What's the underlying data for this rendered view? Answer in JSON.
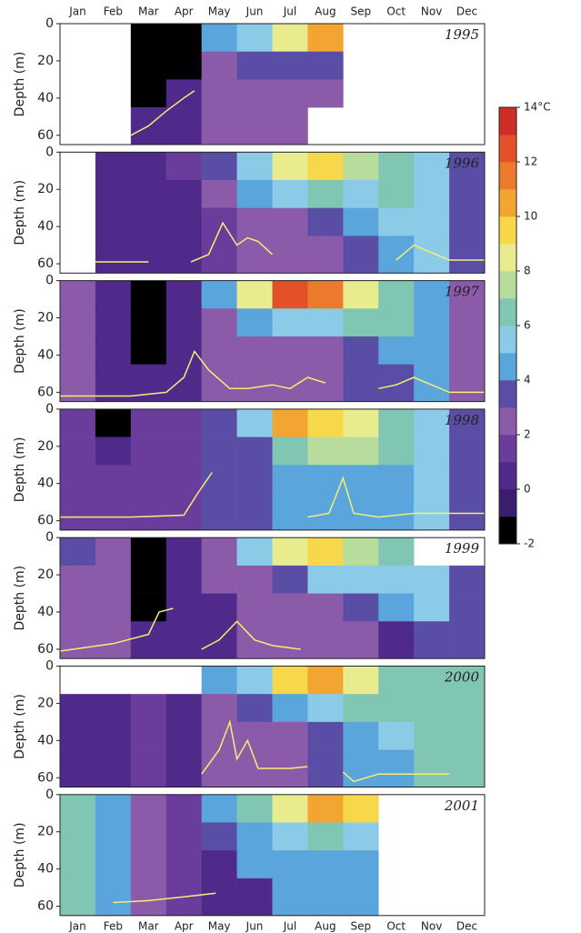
{
  "chart_data": {
    "type": "heatmap",
    "categories": [
      "Jan",
      "Feb",
      "Mar",
      "Apr",
      "May",
      "Jun",
      "Jul",
      "Aug",
      "Sep",
      "Oct",
      "Nov",
      "Dec"
    ],
    "y_label": "Depth (m)",
    "ylim": [
      0,
      65
    ],
    "yticks": [
      0,
      20,
      40,
      60
    ],
    "depth_bins": [
      0,
      15,
      30,
      45,
      65
    ],
    "line_color": "#f3ef72",
    "colorbar": {
      "levels": [
        -2,
        -1,
        0,
        1,
        2,
        3,
        4,
        5,
        6,
        7,
        8,
        9,
        10,
        11,
        12,
        13,
        14
      ],
      "colors": [
        "#000000",
        "#3b1d6e",
        "#4f2a8a",
        "#6a3c9c",
        "#8b5aa8",
        "#5a4da6",
        "#5aa6dc",
        "#8bcbe8",
        "#80c6b2",
        "#b7dc9c",
        "#e9ec8e",
        "#f7d84a",
        "#f3a532",
        "#ec7a2c",
        "#e2512a",
        "#cf2e28"
      ],
      "ticks": [
        -2,
        0,
        2,
        4,
        6,
        8,
        10,
        12,
        {
          "value": 14,
          "label": "14°C"
        }
      ]
    },
    "panels": [
      {
        "title": "1995",
        "grid": [
          [
            null,
            null,
            null,
            null
          ],
          [
            null,
            null,
            null,
            null
          ],
          [
            -1.5,
            -1.5,
            -1.5,
            0.5
          ],
          [
            -1.5,
            -1.5,
            0.5,
            0.5
          ],
          [
            4.5,
            2.5,
            2.5,
            2.5
          ],
          [
            5.5,
            3.5,
            2.5,
            2.5
          ],
          [
            8.5,
            3.5,
            2.5,
            2.5
          ],
          [
            10.5,
            3.5,
            2.5,
            null
          ],
          [
            null,
            null,
            null,
            null
          ],
          [
            null,
            null,
            null,
            null
          ],
          [
            null,
            null,
            null,
            null
          ],
          [
            null,
            null,
            null,
            null
          ]
        ],
        "line": {
          "x": [
            2.0,
            2.5,
            3.0,
            3.5,
            3.8
          ],
          "values": [
            60,
            55,
            47,
            40,
            36
          ]
        }
      },
      {
        "title": "1996",
        "grid": [
          [
            null,
            null,
            null,
            null
          ],
          [
            0.5,
            0.5,
            0.5,
            0.5
          ],
          [
            0.5,
            0.5,
            0.5,
            0.5
          ],
          [
            1.5,
            0.5,
            0.5,
            0.5
          ],
          [
            3.5,
            2.5,
            1.5,
            1.5
          ],
          [
            5.5,
            4.5,
            2.5,
            2.5
          ],
          [
            8.5,
            5.5,
            2.5,
            2.5
          ],
          [
            9.5,
            6.5,
            3.5,
            2.5
          ],
          [
            7.5,
            5.5,
            4.5,
            3.5
          ],
          [
            6.5,
            6.5,
            5.5,
            4.5
          ],
          [
            5.5,
            5.5,
            5.5,
            5.5
          ],
          [
            3.5,
            3.5,
            3.5,
            3.5
          ]
        ],
        "line": {
          "x": [
            1.0,
            2.5,
            2.8,
            3.7,
            4.2,
            4.6,
            5.0,
            5.3,
            5.6,
            6.0,
            8.0,
            9.5,
            10.0,
            11.0,
            12.0
          ],
          "values": [
            59,
            59,
            null,
            59,
            55,
            38,
            50,
            46,
            48,
            55,
            null,
            58,
            50,
            58,
            58
          ]
        }
      },
      {
        "title": "1997",
        "grid": [
          [
            2.5,
            2.5,
            2.5,
            2.5
          ],
          [
            0.5,
            0.5,
            0.5,
            0.5
          ],
          [
            -1.5,
            -1.5,
            -1.5,
            0.5
          ],
          [
            0.5,
            0.5,
            0.5,
            0.5
          ],
          [
            4.5,
            2.5,
            2.5,
            2.5
          ],
          [
            8.5,
            4.5,
            2.5,
            2.5
          ],
          [
            12.5,
            5.5,
            2.5,
            2.5
          ],
          [
            11.5,
            5.5,
            2.5,
            2.5
          ],
          [
            8.5,
            6.5,
            3.5,
            3.5
          ],
          [
            6.5,
            6.5,
            4.5,
            3.5
          ],
          [
            4.5,
            4.5,
            4.5,
            4.5
          ],
          [
            2.5,
            2.5,
            2.5,
            2.5
          ]
        ],
        "line": {
          "x": [
            0,
            2.0,
            3.0,
            3.5,
            3.8,
            4.2,
            4.8,
            5.3,
            6.0,
            6.5,
            7.0,
            7.5,
            8.0,
            9.0,
            9.5,
            10.0,
            11.0,
            12.0
          ],
          "values": [
            62,
            62,
            60,
            52,
            38,
            48,
            58,
            58,
            56,
            58,
            52,
            55,
            null,
            58,
            56,
            52,
            60,
            60
          ]
        }
      },
      {
        "title": "1998",
        "grid": [
          [
            1.5,
            1.5,
            1.5,
            1.5
          ],
          [
            -1.5,
            0.5,
            1.5,
            1.5
          ],
          [
            1.5,
            1.5,
            1.5,
            1.5
          ],
          [
            1.5,
            1.5,
            1.5,
            1.5
          ],
          [
            3.5,
            3.5,
            3.5,
            3.5
          ],
          [
            5.5,
            3.5,
            3.5,
            3.5
          ],
          [
            10.5,
            6.5,
            4.5,
            4.5
          ],
          [
            9.5,
            7.5,
            4.5,
            4.5
          ],
          [
            8.5,
            7.5,
            4.5,
            4.5
          ],
          [
            6.5,
            6.5,
            4.5,
            4.5
          ],
          [
            5.5,
            5.5,
            5.5,
            5.5
          ],
          [
            3.5,
            3.5,
            3.5,
            3.5
          ]
        ],
        "line": {
          "x": [
            0,
            2.0,
            3.5,
            3.9,
            4.3,
            6.2,
            7.0,
            7.6,
            8.0,
            8.3,
            9.0,
            10.0,
            12.0
          ],
          "values": [
            58,
            58,
            57,
            45,
            34,
            null,
            58,
            56,
            37,
            56,
            58,
            56,
            56
          ]
        }
      },
      {
        "title": "1999",
        "grid": [
          [
            3.5,
            2.5,
            2.5,
            2.5
          ],
          [
            2.5,
            2.5,
            2.5,
            2.5
          ],
          [
            -1.5,
            -1.5,
            -1.5,
            0.5
          ],
          [
            0.5,
            0.5,
            0.5,
            0.5
          ],
          [
            2.5,
            2.5,
            0.5,
            0.5
          ],
          [
            5.5,
            2.5,
            2.5,
            2.5
          ],
          [
            8.5,
            3.5,
            2.5,
            2.5
          ],
          [
            9.5,
            5.5,
            2.5,
            2.5
          ],
          [
            7.5,
            5.5,
            3.5,
            2.5
          ],
          [
            6.5,
            5.5,
            4.5,
            0.5
          ],
          [
            null,
            5.5,
            5.5,
            3.5
          ],
          [
            null,
            3.5,
            3.5,
            3.5
          ]
        ],
        "line": {
          "x": [
            0,
            1.5,
            2.5,
            2.8,
            3.2,
            3.6,
            4.0,
            4.5,
            5.0,
            5.5,
            6.0,
            6.8
          ],
          "values": [
            61,
            57,
            52,
            40,
            38,
            null,
            60,
            55,
            45,
            55,
            58,
            60
          ]
        }
      },
      {
        "title": "2000",
        "grid": [
          [
            null,
            0.5,
            0.5,
            0.5
          ],
          [
            null,
            0.5,
            0.5,
            0.5
          ],
          [
            null,
            1.5,
            1.5,
            1.5
          ],
          [
            null,
            0.5,
            0.5,
            0.5
          ],
          [
            4.5,
            2.5,
            2.5,
            2.5
          ],
          [
            5.5,
            3.5,
            2.5,
            2.5
          ],
          [
            9.5,
            4.5,
            2.5,
            2.5
          ],
          [
            10.5,
            5.5,
            3.5,
            3.5
          ],
          [
            8.5,
            6.5,
            4.5,
            4.5
          ],
          [
            6.5,
            6.5,
            5.5,
            4.5
          ],
          [
            6.5,
            6.5,
            6.5,
            6.5
          ],
          [
            6.5,
            6.5,
            6.5,
            6.5
          ]
        ],
        "line": {
          "x": [
            4.0,
            4.5,
            4.8,
            5.0,
            5.3,
            5.6,
            6.0,
            6.5,
            7.0,
            7.3,
            8.0,
            8.3,
            9.0,
            10.0,
            11.0
          ],
          "values": [
            58,
            45,
            30,
            50,
            40,
            55,
            55,
            55,
            54,
            null,
            57,
            62,
            58,
            58,
            58
          ]
        }
      },
      {
        "title": "2001",
        "grid": [
          [
            6.5,
            6.5,
            6.5,
            6.5
          ],
          [
            4.5,
            4.5,
            4.5,
            4.5
          ],
          [
            2.5,
            2.5,
            2.5,
            2.5
          ],
          [
            1.5,
            1.5,
            1.5,
            1.5
          ],
          [
            4.5,
            3.5,
            0.5,
            0.5
          ],
          [
            6.5,
            4.5,
            4.5,
            0.5
          ],
          [
            8.5,
            5.5,
            4.5,
            4.5
          ],
          [
            10.5,
            6.5,
            4.5,
            4.5
          ],
          [
            9.5,
            5.5,
            4.5,
            4.5
          ],
          [
            null,
            null,
            null,
            null
          ],
          [
            null,
            null,
            null,
            null
          ],
          [
            null,
            null,
            null,
            null
          ]
        ],
        "line": {
          "x": [
            1.5,
            2.5,
            3.5,
            4.4
          ],
          "values": [
            58,
            57,
            55,
            53
          ]
        }
      }
    ]
  }
}
